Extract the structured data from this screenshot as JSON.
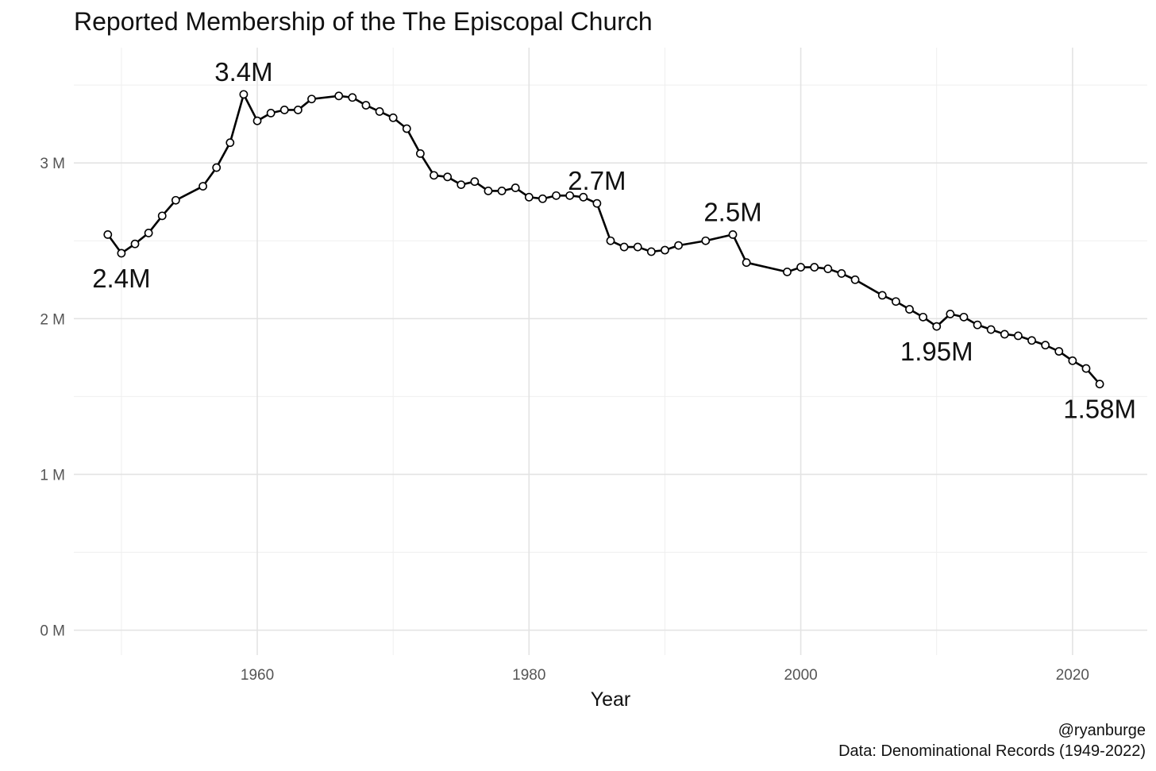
{
  "chart_data": {
    "type": "line",
    "title": "Reported Membership of the The Episcopal Church",
    "xlabel": "Year",
    "ylabel": "",
    "xlim": [
      1946.5,
      2025.5
    ],
    "ylim": [
      -0.16,
      3.74
    ],
    "x_ticks": [
      1960,
      1980,
      2000,
      2020
    ],
    "x_tick_labels": [
      "1960",
      "1980",
      "2000",
      "2020"
    ],
    "y_ticks": [
      0,
      1,
      2,
      3
    ],
    "y_tick_labels": [
      "0 M",
      "1 M",
      "2 M",
      "3 M"
    ],
    "grid": true,
    "legend": "none",
    "series": [
      {
        "color": "#000000",
        "points": [
          [
            1949,
            2.54
          ],
          [
            1950,
            2.42
          ],
          [
            1951,
            2.48
          ],
          [
            1952,
            2.55
          ],
          [
            1953,
            2.66
          ],
          [
            1954,
            2.76
          ],
          [
            1956,
            2.85
          ],
          [
            1957,
            2.97
          ],
          [
            1958,
            3.13
          ],
          [
            1959,
            3.44
          ],
          [
            1960,
            3.27
          ],
          [
            1961,
            3.32
          ],
          [
            1962,
            3.34
          ],
          [
            1963,
            3.34
          ],
          [
            1964,
            3.41
          ],
          [
            1966,
            3.43
          ],
          [
            1967,
            3.42
          ],
          [
            1968,
            3.37
          ],
          [
            1969,
            3.33
          ],
          [
            1970,
            3.29
          ],
          [
            1971,
            3.22
          ],
          [
            1972,
            3.06
          ],
          [
            1973,
            2.92
          ],
          [
            1974,
            2.91
          ],
          [
            1975,
            2.86
          ],
          [
            1976,
            2.88
          ],
          [
            1977,
            2.82
          ],
          [
            1978,
            2.82
          ],
          [
            1979,
            2.84
          ],
          [
            1980,
            2.78
          ],
          [
            1981,
            2.77
          ],
          [
            1982,
            2.79
          ],
          [
            1983,
            2.79
          ],
          [
            1984,
            2.78
          ],
          [
            1985,
            2.74
          ],
          [
            1986,
            2.5
          ],
          [
            1987,
            2.46
          ],
          [
            1988,
            2.46
          ],
          [
            1989,
            2.43
          ],
          [
            1990,
            2.44
          ],
          [
            1991,
            2.47
          ],
          [
            1993,
            2.5
          ],
          [
            1995,
            2.54
          ],
          [
            1996,
            2.36
          ],
          [
            1999,
            2.3
          ],
          [
            2000,
            2.33
          ],
          [
            2001,
            2.33
          ],
          [
            2002,
            2.32
          ],
          [
            2003,
            2.29
          ],
          [
            2004,
            2.25
          ],
          [
            2006,
            2.15
          ],
          [
            2007,
            2.11
          ],
          [
            2008,
            2.06
          ],
          [
            2009,
            2.01
          ],
          [
            2010,
            1.95
          ],
          [
            2011,
            2.03
          ],
          [
            2012,
            2.01
          ],
          [
            2013,
            1.96
          ],
          [
            2014,
            1.93
          ],
          [
            2015,
            1.9
          ],
          [
            2016,
            1.89
          ],
          [
            2017,
            1.86
          ],
          [
            2018,
            1.83
          ],
          [
            2019,
            1.79
          ],
          [
            2020,
            1.73
          ],
          [
            2021,
            1.68
          ],
          [
            2022,
            1.58
          ]
        ]
      }
    ],
    "annotations": [
      {
        "x": 1950,
        "y": 2.42,
        "label": "2.4M",
        "position": "below"
      },
      {
        "x": 1959,
        "y": 3.44,
        "label": "3.4M",
        "position": "above"
      },
      {
        "x": 1985,
        "y": 2.74,
        "label": "2.7M",
        "position": "above"
      },
      {
        "x": 1995,
        "y": 2.54,
        "label": "2.5M",
        "position": "above"
      },
      {
        "x": 2010,
        "y": 1.95,
        "label": "1.95M",
        "position": "below"
      },
      {
        "x": 2022,
        "y": 1.58,
        "label": "1.58M",
        "position": "below"
      }
    ],
    "caption": [
      "@ryanburge",
      "Data: Denominational Records (1949-2022)"
    ]
  }
}
